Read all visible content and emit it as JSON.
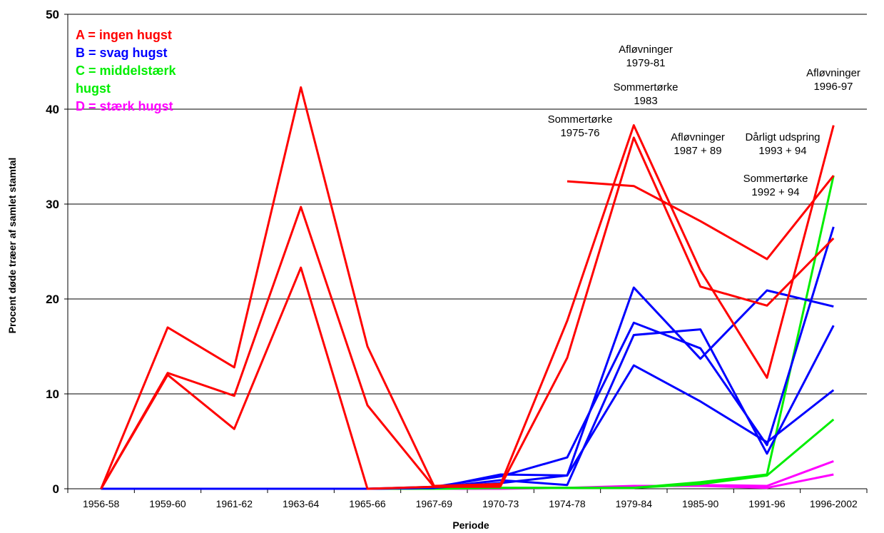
{
  "chart_data": {
    "type": "line",
    "xlabel": "Periode",
    "ylabel": "Procent døde træer af samlet stamtal",
    "ylim": [
      0,
      50
    ],
    "yticks": [
      0,
      10,
      20,
      30,
      40,
      50
    ],
    "grid": "horizontal",
    "categories": [
      "1956-58",
      "1959-60",
      "1961-62",
      "1963-64",
      "1965-66",
      "1967-69",
      "1970-73",
      "1974-78",
      "1979-84",
      "1985-90",
      "1991-96",
      "1996-2002"
    ],
    "legend": {
      "placement": "top-left",
      "entries": [
        {
          "text": "A = ingen hugst",
          "color": "#ff0000"
        },
        {
          "text": "B = svag hugst",
          "color": "#0000ff"
        },
        {
          "text": "C = middelstærk",
          "color": "#00ee00"
        },
        {
          "text": "hugst",
          "color": "#00ee00"
        },
        {
          "text": "D = stærk hugst",
          "color": "#ff00ff"
        }
      ]
    },
    "annotations": [
      {
        "lines": [
          "Afløvninger",
          "1979-81"
        ]
      },
      {
        "lines": [
          "Sommertørke",
          "1983"
        ]
      },
      {
        "lines": [
          "Sommertørke",
          "1975-76"
        ]
      },
      {
        "lines": [
          "Afløvninger",
          "1987 + 89"
        ]
      },
      {
        "lines": [
          "Dårligt udspring",
          "1993 + 94"
        ]
      },
      {
        "lines": [
          "Sommertørke",
          "1992 + 94"
        ]
      },
      {
        "lines": [
          "Afløvninger",
          "1996-97"
        ]
      }
    ],
    "series": [
      {
        "group": "A",
        "color": "#ff0000",
        "values": [
          0,
          17.0,
          12.8,
          42.3,
          15.0,
          0.3,
          0.5,
          17.7,
          38.3,
          23.0,
          11.7,
          38.3
        ]
      },
      {
        "group": "A",
        "color": "#ff0000",
        "values": [
          0,
          12.2,
          9.8,
          29.7,
          8.8,
          0.2,
          0.3,
          13.8,
          37.0,
          21.3,
          19.3,
          26.4
        ]
      },
      {
        "group": "A",
        "color": "#ff0000",
        "values": [
          0,
          12.0,
          6.3,
          23.3,
          0,
          0.2,
          0.2,
          null,
          null,
          null,
          null,
          null
        ]
      },
      {
        "group": "A",
        "color": "#ff0000",
        "values": [
          null,
          null,
          null,
          null,
          null,
          null,
          null,
          32.4,
          31.9,
          28.2,
          24.2,
          33.0
        ]
      },
      {
        "group": "B",
        "color": "#0000ff",
        "values": [
          0,
          0,
          0,
          0,
          0,
          0.1,
          1.5,
          1.4,
          21.2,
          13.7,
          20.9,
          19.2
        ]
      },
      {
        "group": "B",
        "color": "#0000ff",
        "values": [
          0,
          0,
          0,
          0,
          0,
          0.2,
          1.3,
          3.3,
          17.5,
          14.8,
          4.6,
          27.6
        ]
      },
      {
        "group": "B",
        "color": "#0000ff",
        "values": [
          0,
          0,
          0,
          0,
          0,
          0.1,
          0.9,
          0.4,
          16.2,
          16.8,
          3.7,
          17.2
        ]
      },
      {
        "group": "B",
        "color": "#0000ff",
        "values": [
          0,
          0,
          0,
          0,
          0,
          0.1,
          0.6,
          1.4,
          13.0,
          9.2,
          4.9,
          10.4
        ]
      },
      {
        "group": "C",
        "color": "#00ee00",
        "values": [
          0,
          0,
          0,
          0,
          0,
          0,
          0.1,
          0.1,
          0.1,
          0.7,
          1.5,
          33.0
        ]
      },
      {
        "group": "C",
        "color": "#00ee00",
        "values": [
          0,
          0,
          0,
          0,
          0,
          0,
          0.1,
          0.1,
          0.1,
          0.5,
          1.4,
          7.3
        ]
      },
      {
        "group": "D",
        "color": "#ff00ff",
        "values": [
          0,
          0,
          0,
          0,
          0,
          0,
          0.1,
          0.1,
          0.2,
          0.4,
          0.3,
          2.9
        ]
      },
      {
        "group": "D",
        "color": "#ff00ff",
        "values": [
          0,
          0,
          0,
          0,
          0,
          0,
          0,
          0.1,
          0.3,
          0.3,
          0.1,
          1.5
        ]
      }
    ]
  }
}
